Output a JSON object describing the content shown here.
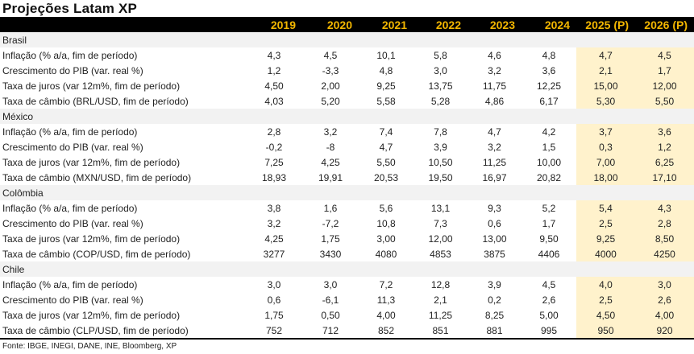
{
  "title": "Projeções Latam XP",
  "header": {
    "years": [
      "2019",
      "2020",
      "2021",
      "2022",
      "2023",
      "2024",
      "2025 (P)",
      "2026 (P)"
    ],
    "projected_from_index": 6
  },
  "colors": {
    "header_bg": "#000000",
    "header_text": "#f2b600",
    "section_bg": "#f2f2f2",
    "projection_bg": "#fff2cc"
  },
  "sections": [
    {
      "name": "Brasil",
      "rows": [
        {
          "label": "Inflação (% a/a, fim de período)",
          "values": [
            "4,3",
            "4,5",
            "10,1",
            "5,8",
            "4,6",
            "4,8",
            "4,7",
            "4,5"
          ]
        },
        {
          "label": "Crescimento do PIB (var. real %)",
          "values": [
            "1,2",
            "-3,3",
            "4,8",
            "3,0",
            "3,2",
            "3,6",
            "2,1",
            "1,7"
          ]
        },
        {
          "label": "Taxa de juros (var 12m%, fim de período)",
          "values": [
            "4,50",
            "2,00",
            "9,25",
            "13,75",
            "11,75",
            "12,25",
            "15,00",
            "12,00"
          ]
        },
        {
          "label": "Taxa de câmbio (BRL/USD, fim de período)",
          "values": [
            "4,03",
            "5,20",
            "5,58",
            "5,28",
            "4,86",
            "6,17",
            "5,30",
            "5,50"
          ]
        }
      ]
    },
    {
      "name": "México",
      "rows": [
        {
          "label": "Inflação (% a/a, fim de período)",
          "values": [
            "2,8",
            "3,2",
            "7,4",
            "7,8",
            "4,7",
            "4,2",
            "3,7",
            "3,6"
          ]
        },
        {
          "label": "Crescimento do PIB (var. real %)",
          "values": [
            "-0,2",
            "-8",
            "4,7",
            "3,9",
            "3,2",
            "1,5",
            "0,3",
            "1,2"
          ]
        },
        {
          "label": "Taxa de juros (var 12m%, fim de período)",
          "values": [
            "7,25",
            "4,25",
            "5,50",
            "10,50",
            "11,25",
            "10,00",
            "7,00",
            "6,25"
          ]
        },
        {
          "label": "Taxa de câmbio (MXN/USD, fim de período)",
          "values": [
            "18,93",
            "19,91",
            "20,53",
            "19,50",
            "16,97",
            "20,82",
            "18,00",
            "17,10"
          ]
        }
      ]
    },
    {
      "name": "Colômbia",
      "rows": [
        {
          "label": "Inflação (% a/a, fim de período)",
          "values": [
            "3,8",
            "1,6",
            "5,6",
            "13,1",
            "9,3",
            "5,2",
            "5,4",
            "4,3"
          ]
        },
        {
          "label": "Crescimento do PIB (var. real %)",
          "values": [
            "3,2",
            "-7,2",
            "10,8",
            "7,3",
            "0,6",
            "1,7",
            "2,5",
            "2,8"
          ]
        },
        {
          "label": "Taxa de juros (var 12m%, fim de período)",
          "values": [
            "4,25",
            "1,75",
            "3,00",
            "12,00",
            "13,00",
            "9,50",
            "9,25",
            "8,50"
          ]
        },
        {
          "label": "Taxa de câmbio (COP/USD, fim de período)",
          "values": [
            "3277",
            "3430",
            "4080",
            "4853",
            "3875",
            "4406",
            "4000",
            "4250"
          ]
        }
      ]
    },
    {
      "name": "Chile",
      "rows": [
        {
          "label": "Inflação (% a/a, fim de período)",
          "values": [
            "3,0",
            "3,0",
            "7,2",
            "12,8",
            "3,9",
            "4,5",
            "4,0",
            "3,0"
          ]
        },
        {
          "label": "Crescimento do PIB (var. real %)",
          "values": [
            "0,6",
            "-6,1",
            "11,3",
            "2,1",
            "0,2",
            "2,6",
            "2,5",
            "2,6"
          ]
        },
        {
          "label": "Taxa de juros (var 12m%, fim de período)",
          "values": [
            "1,75",
            "0,50",
            "4,00",
            "11,25",
            "8,25",
            "5,00",
            "4,50",
            "4,00"
          ]
        },
        {
          "label": "Taxa de câmbio (CLP/USD, fim de período)",
          "values": [
            "752",
            "712",
            "852",
            "851",
            "881",
            "995",
            "950",
            "920"
          ]
        }
      ]
    }
  ],
  "source": "Fonte: IBGE, INEGI, DANE, INE, Bloomberg, XP"
}
